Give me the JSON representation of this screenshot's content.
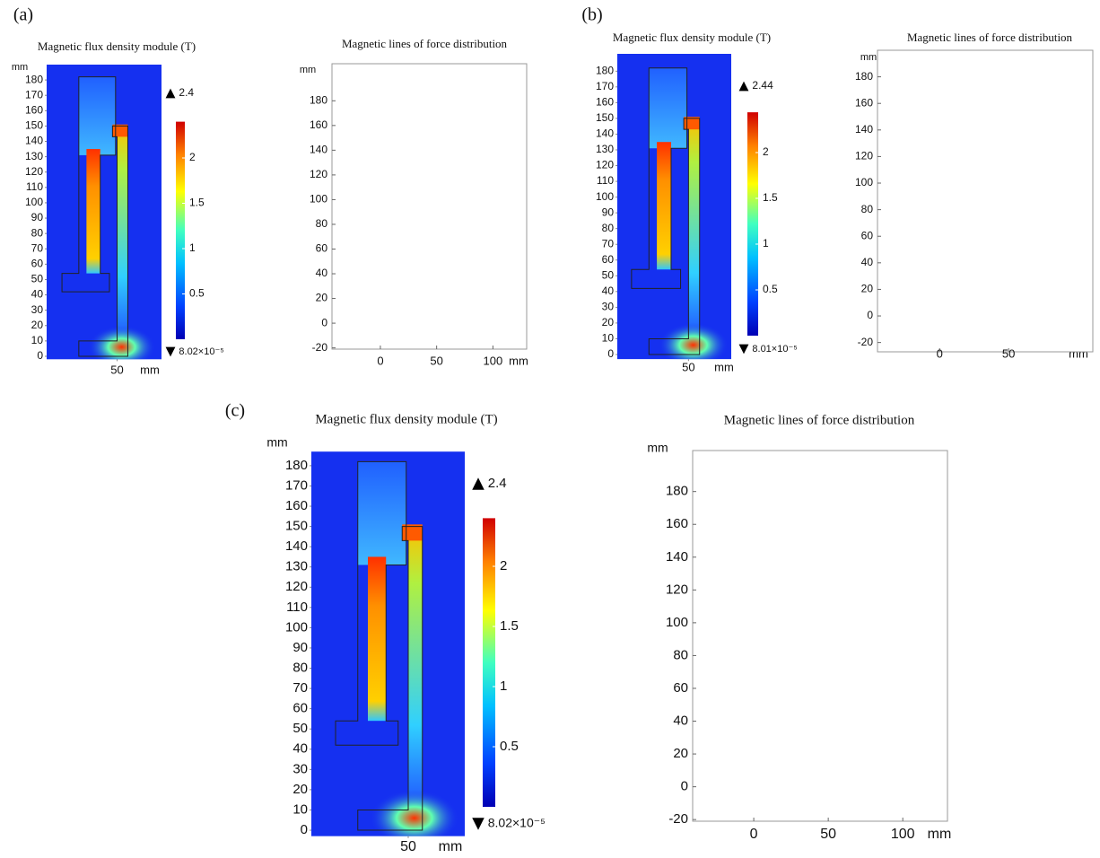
{
  "chart_data": [
    {
      "type": "heatmap",
      "panel_label": "(a)",
      "title": "Magnetic flux density module (T)",
      "y_unit": "mm",
      "x_unit": "mm",
      "xlim": [
        4,
        79
      ],
      "ylim": [
        -2,
        190
      ],
      "xticks": [
        50
      ],
      "yticks": [
        0,
        10,
        20,
        30,
        40,
        50,
        60,
        70,
        80,
        90,
        100,
        110,
        120,
        130,
        140,
        150,
        160,
        170,
        180
      ],
      "colorbar": {
        "ticks": [
          0.5,
          1,
          1.5,
          2
        ],
        "max": 2.4,
        "min": {
          "value": 8.02e-05,
          "label": "8.02×10⁻⁵"
        }
      }
    },
    {
      "type": "field-lines",
      "title": "Magnetic lines of force distribution",
      "y_unit": "mm",
      "x_unit": "mm",
      "xlim": [
        -43,
        130
      ],
      "ylim": [
        -21,
        210
      ],
      "xticks": [
        0,
        50,
        100
      ],
      "yticks": [
        -20,
        0,
        20,
        40,
        60,
        80,
        100,
        120,
        140,
        160,
        180
      ]
    },
    {
      "type": "heatmap",
      "panel_label": "(b)",
      "title": "Magnetic flux density module (T)",
      "x_unit": "mm",
      "xlim": [
        5,
        77
      ],
      "ylim": [
        -3,
        191
      ],
      "xticks": [
        50
      ],
      "yticks": [
        0,
        10,
        20,
        30,
        40,
        50,
        60,
        70,
        80,
        90,
        100,
        110,
        120,
        130,
        140,
        150,
        160,
        170,
        180
      ],
      "colorbar": {
        "ticks": [
          0.5,
          1,
          1.5,
          2
        ],
        "max": 2.44,
        "min": {
          "value": 8.01e-05,
          "label": "8.01×10⁻⁵"
        }
      }
    },
    {
      "type": "field-lines",
      "title": "Magnetic lines of force distribution",
      "y_unit": "mm",
      "x_unit": "mm",
      "xlim": [
        -45,
        111
      ],
      "ylim": [
        -27,
        200
      ],
      "xticks": [
        0,
        50
      ],
      "yticks": [
        -20,
        0,
        20,
        40,
        60,
        80,
        100,
        120,
        140,
        160,
        180
      ]
    },
    {
      "type": "heatmap",
      "panel_label": "(c)",
      "title": "Magnetic flux density module (T)",
      "y_unit": "mm",
      "x_unit": "mm",
      "xlim": [
        2,
        78
      ],
      "ylim": [
        -3,
        187
      ],
      "xticks": [
        50
      ],
      "yticks": [
        0,
        10,
        20,
        30,
        40,
        50,
        60,
        70,
        80,
        90,
        100,
        110,
        120,
        130,
        140,
        150,
        160,
        170,
        180
      ],
      "colorbar": {
        "ticks": [
          0.5,
          1,
          1.5,
          2
        ],
        "max": 2.4,
        "min": {
          "value": 8.02e-05,
          "label": "8.02×10⁻⁵"
        }
      }
    },
    {
      "type": "field-lines",
      "title": "Magnetic lines of force distribution",
      "y_unit": "mm",
      "x_unit": "mm",
      "xlim": [
        -41,
        130
      ],
      "ylim": [
        -21,
        205
      ],
      "xticks": [
        0,
        50,
        100
      ],
      "yticks": [
        -20,
        0,
        20,
        40,
        60,
        80,
        100,
        120,
        140,
        160,
        180
      ]
    }
  ]
}
